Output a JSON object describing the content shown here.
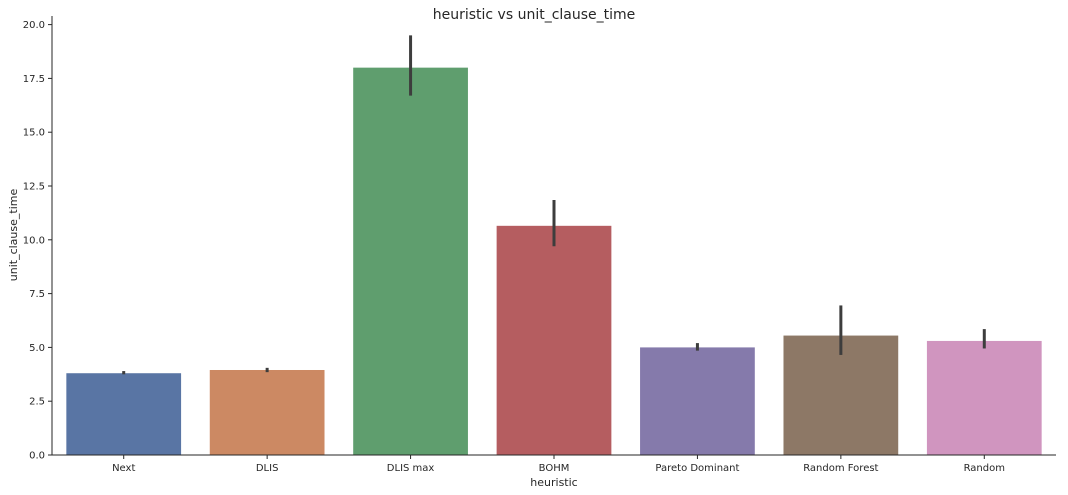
{
  "chart_data": {
    "type": "bar",
    "title": "heuristic vs unit_clause_time",
    "xlabel": "heuristic",
    "ylabel": "unit_clause_time",
    "categories": [
      "Next",
      "DLIS",
      "DLIS max",
      "BOHM",
      "Pareto Dominant",
      "Random Forest",
      "Random"
    ],
    "values": [
      3.8,
      3.95,
      18.0,
      10.65,
      5.0,
      5.55,
      5.3
    ],
    "error_low": [
      3.75,
      3.85,
      16.7,
      9.7,
      4.85,
      4.65,
      4.95
    ],
    "error_high": [
      3.9,
      4.05,
      19.5,
      11.85,
      5.2,
      6.95,
      5.85
    ],
    "ylim": [
      0,
      20.4
    ],
    "yticks": [
      "0.0",
      "2.5",
      "5.0",
      "7.5",
      "10.0",
      "12.5",
      "15.0",
      "17.5",
      "20.0"
    ],
    "grid": false,
    "colors": [
      "#5975a4",
      "#cc8963",
      "#5f9e6e",
      "#b55d60",
      "#857aab",
      "#8d7866",
      "#d095bf"
    ],
    "error_color": "#3d3d3d"
  }
}
